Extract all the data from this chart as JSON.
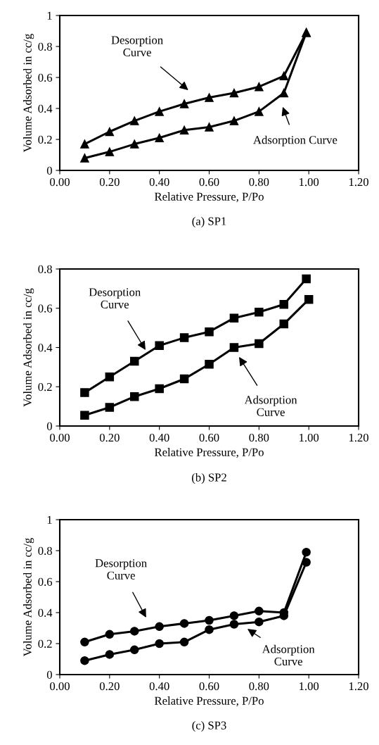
{
  "chart_data": [
    {
      "type": "line",
      "subtitle": "(a) SP1",
      "xlabel": "Relative Pressure, P/Po",
      "ylabel": "Volume Adsorbed in cc/g",
      "marker": "triangle",
      "line_style": "solid",
      "series": [
        {
          "color": "#000000",
          "x": [
            0.1,
            0.2,
            0.3,
            0.4,
            0.5,
            0.6,
            0.7,
            0.8,
            0.9,
            0.99
          ],
          "values": [
            0.17,
            0.25,
            0.32,
            0.38,
            0.43,
            0.47,
            0.5,
            0.54,
            0.61,
            0.89
          ]
        },
        {
          "color": "#000000",
          "x": [
            0.1,
            0.2,
            0.3,
            0.4,
            0.5,
            0.6,
            0.7,
            0.8,
            0.9,
            0.99
          ],
          "values": [
            0.08,
            0.12,
            0.17,
            0.21,
            0.26,
            0.28,
            0.32,
            0.38,
            0.5,
            0.89
          ]
        }
      ],
      "annotations": [
        "Desorption\nCurve",
        "Adsorption Curve"
      ],
      "xlim": [
        0,
        1.2
      ],
      "ylim": [
        0,
        1
      ],
      "xticks": [
        {
          "value": 0,
          "label": "0.00"
        },
        {
          "value": 0.2,
          "label": "0.20"
        },
        {
          "value": 0.4,
          "label": "0.40"
        },
        {
          "value": 0.6,
          "label": "0.60"
        },
        {
          "value": 0.8,
          "label": "0.80"
        },
        {
          "value": 1.0,
          "label": "1.00"
        },
        {
          "value": 1.2,
          "label": "1.20"
        }
      ],
      "yticks": [
        0,
        0.2,
        0.4,
        0.6,
        0.8,
        1
      ]
    },
    {
      "type": "line",
      "subtitle": "(b) SP2",
      "xlabel": "Relative Pressure, P/Po",
      "ylabel": "Volume Adsorbed in cc/g",
      "marker": "square",
      "line_style": "solid",
      "series": [
        {
          "color": "#000000",
          "x": [
            0.1,
            0.2,
            0.3,
            0.4,
            0.5,
            0.6,
            0.7,
            0.8,
            0.9,
            0.99
          ],
          "values": [
            0.17,
            0.25,
            0.33,
            0.41,
            0.45,
            0.48,
            0.55,
            0.58,
            0.62,
            0.75
          ]
        },
        {
          "color": "#000000",
          "x": [
            0.1,
            0.2,
            0.3,
            0.4,
            0.5,
            0.6,
            0.7,
            0.8,
            0.9,
            1.0
          ],
          "values": [
            0.055,
            0.095,
            0.15,
            0.19,
            0.24,
            0.315,
            0.4,
            0.42,
            0.52,
            0.645
          ]
        }
      ],
      "annotations": [
        "Desorption\nCurve",
        "Adsorption\nCurve"
      ],
      "xlim": [
        0,
        1.2
      ],
      "ylim": [
        0,
        0.8
      ],
      "xticks": [
        {
          "value": 0,
          "label": "0.00"
        },
        {
          "value": 0.2,
          "label": "0.20"
        },
        {
          "value": 0.4,
          "label": "0.40"
        },
        {
          "value": 0.6,
          "label": "0.60"
        },
        {
          "value": 0.8,
          "label": "0.80"
        },
        {
          "value": 1.0,
          "label": "1.00"
        },
        {
          "value": 1.2,
          "label": "1.20"
        }
      ],
      "yticks": [
        0,
        0.2,
        0.4,
        0.6,
        0.8
      ]
    },
    {
      "type": "line",
      "subtitle": "(c) SP3",
      "xlabel": "Relative Pressure, P/Po",
      "ylabel": "Volume Adsorbed in cc/g",
      "marker": "circle",
      "line_style": "solid",
      "series": [
        {
          "color": "#000000",
          "x": [
            0.1,
            0.2,
            0.3,
            0.4,
            0.5,
            0.6,
            0.7,
            0.8,
            0.9,
            0.99
          ],
          "values": [
            0.21,
            0.26,
            0.28,
            0.31,
            0.33,
            0.35,
            0.38,
            0.41,
            0.4,
            0.79
          ]
        },
        {
          "color": "#000000",
          "x": [
            0.1,
            0.2,
            0.3,
            0.4,
            0.5,
            0.6,
            0.7,
            0.8,
            0.9,
            0.99
          ],
          "values": [
            0.09,
            0.13,
            0.16,
            0.2,
            0.21,
            0.29,
            0.325,
            0.34,
            0.38,
            0.725
          ]
        }
      ],
      "annotations": [
        "Desorption\nCurve",
        "Adsorption\nCurve"
      ],
      "xlim": [
        0,
        1.2
      ],
      "ylim": [
        0,
        1
      ],
      "xticks": [
        {
          "value": 0,
          "label": "0.00"
        },
        {
          "value": 0.2,
          "label": "0.20"
        },
        {
          "value": 0.4,
          "label": "0.40"
        },
        {
          "value": 0.6,
          "label": "0.60"
        },
        {
          "value": 0.8,
          "label": "0.80"
        },
        {
          "value": 1.0,
          "label": "1.00"
        },
        {
          "value": 1.2,
          "label": "1.20"
        }
      ],
      "yticks": [
        0,
        0.2,
        0.4,
        0.6,
        0.8,
        1
      ]
    }
  ]
}
